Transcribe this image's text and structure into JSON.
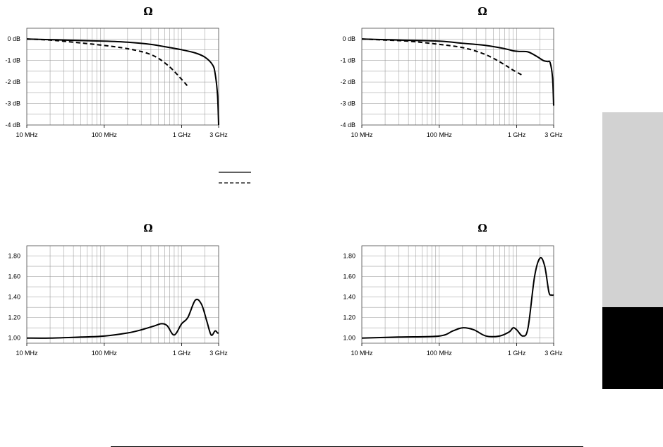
{
  "chart_data": [
    {
      "type": "line",
      "title": "Ω",
      "xscale": "log",
      "xlim": [
        10,
        3000
      ],
      "ylim": [
        -4,
        0.5
      ],
      "x_ticks": [
        {
          "value": 10,
          "label": "10 MHz"
        },
        {
          "value": 100,
          "label": "100 MHz"
        },
        {
          "value": 1000,
          "label": "1 GHz"
        },
        {
          "value": 3000,
          "label": "3 GHz"
        }
      ],
      "y_ticks": [
        {
          "value": 0,
          "label": "0 dB"
        },
        {
          "value": -1,
          "label": "-1 dB"
        },
        {
          "value": -2,
          "label": "-2 dB"
        },
        {
          "value": -3,
          "label": "-3 dB"
        },
        {
          "value": -4,
          "label": "-4 dB"
        }
      ],
      "grid": true,
      "series": [
        {
          "style": "solid",
          "x": [
            10,
            30,
            100,
            200,
            400,
            700,
            1000,
            1500,
            2000,
            2500,
            2700,
            2900,
            3000
          ],
          "y": [
            0,
            -0.05,
            -0.1,
            -0.15,
            -0.25,
            -0.4,
            -0.5,
            -0.65,
            -0.85,
            -1.2,
            -1.6,
            -2.6,
            -4.0
          ]
        },
        {
          "style": "dashed",
          "x": [
            10,
            20,
            40,
            100,
            200,
            350,
            500,
            700,
            900,
            1200
          ],
          "y": [
            0,
            -0.05,
            -0.15,
            -0.3,
            -0.45,
            -0.65,
            -0.9,
            -1.3,
            -1.7,
            -2.2
          ]
        }
      ]
    },
    {
      "type": "line",
      "title": "Ω",
      "xscale": "log",
      "xlim": [
        10,
        3000
      ],
      "ylim": [
        -4,
        0.5
      ],
      "x_ticks": [
        {
          "value": 10,
          "label": "10 MHz"
        },
        {
          "value": 100,
          "label": "100 MHz"
        },
        {
          "value": 1000,
          "label": "1 GHz"
        },
        {
          "value": 3000,
          "label": "3 GHz"
        }
      ],
      "y_ticks": [
        {
          "value": 0,
          "label": "0 dB"
        },
        {
          "value": -1,
          "label": "-1 dB"
        },
        {
          "value": -2,
          "label": "-2 dB"
        },
        {
          "value": -3,
          "label": "-3 dB"
        },
        {
          "value": -4,
          "label": "-4 dB"
        }
      ],
      "grid": true,
      "series": [
        {
          "style": "solid",
          "x": [
            10,
            30,
            100,
            200,
            400,
            700,
            900,
            1100,
            1400,
            1800,
            2200,
            2500,
            2700,
            2900,
            3000
          ],
          "y": [
            0,
            -0.05,
            -0.1,
            -0.2,
            -0.3,
            -0.45,
            -0.55,
            -0.58,
            -0.6,
            -0.8,
            -1.0,
            -1.05,
            -1.1,
            -1.8,
            -3.1
          ]
        },
        {
          "style": "dashed",
          "x": [
            10,
            20,
            40,
            100,
            200,
            350,
            500,
            700,
            900,
            1200
          ],
          "y": [
            0,
            -0.05,
            -0.1,
            -0.25,
            -0.4,
            -0.65,
            -0.9,
            -1.2,
            -1.45,
            -1.7
          ]
        }
      ]
    },
    {
      "type": "line",
      "title": "Ω",
      "xscale": "log",
      "xlim": [
        10,
        3000
      ],
      "ylim": [
        0.95,
        1.9
      ],
      "x_ticks": [
        {
          "value": 10,
          "label": "10 MHz"
        },
        {
          "value": 100,
          "label": "100 MHz"
        },
        {
          "value": 1000,
          "label": "1 GHz"
        },
        {
          "value": 3000,
          "label": "3 GHz"
        }
      ],
      "y_ticks": [
        {
          "value": 1.0,
          "label": "1.00"
        },
        {
          "value": 1.2,
          "label": "1.20"
        },
        {
          "value": 1.4,
          "label": "1.40"
        },
        {
          "value": 1.6,
          "label": "1.60"
        },
        {
          "value": 1.8,
          "label": "1.80"
        }
      ],
      "grid": true,
      "series": [
        {
          "style": "solid",
          "x": [
            10,
            20,
            50,
            100,
            200,
            300,
            450,
            550,
            650,
            800,
            1000,
            1200,
            1500,
            1800,
            2100,
            2400,
            2700,
            2900,
            3000
          ],
          "y": [
            1.0,
            1.0,
            1.01,
            1.02,
            1.05,
            1.08,
            1.12,
            1.14,
            1.12,
            1.03,
            1.14,
            1.2,
            1.37,
            1.33,
            1.17,
            1.03,
            1.07,
            1.05,
            1.05
          ]
        }
      ]
    },
    {
      "type": "line",
      "title": "Ω",
      "xscale": "log",
      "xlim": [
        10,
        3000
      ],
      "ylim": [
        0.95,
        1.9
      ],
      "x_ticks": [
        {
          "value": 10,
          "label": "10 MHz"
        },
        {
          "value": 100,
          "label": "100 MHz"
        },
        {
          "value": 1000,
          "label": "1 GHz"
        },
        {
          "value": 3000,
          "label": "3 GHz"
        }
      ],
      "y_ticks": [
        {
          "value": 1.0,
          "label": "1.00"
        },
        {
          "value": 1.2,
          "label": "1.20"
        },
        {
          "value": 1.4,
          "label": "1.40"
        },
        {
          "value": 1.6,
          "label": "1.60"
        },
        {
          "value": 1.8,
          "label": "1.80"
        }
      ],
      "grid": true,
      "series": [
        {
          "style": "solid",
          "x": [
            10,
            30,
            100,
            150,
            200,
            280,
            400,
            600,
            800,
            900,
            1000,
            1200,
            1400,
            1700,
            2000,
            2300,
            2600,
            2800,
            3000
          ],
          "y": [
            1.0,
            1.01,
            1.02,
            1.07,
            1.1,
            1.08,
            1.02,
            1.02,
            1.06,
            1.1,
            1.08,
            1.02,
            1.1,
            1.6,
            1.78,
            1.7,
            1.45,
            1.42,
            1.42
          ]
        }
      ]
    }
  ]
}
